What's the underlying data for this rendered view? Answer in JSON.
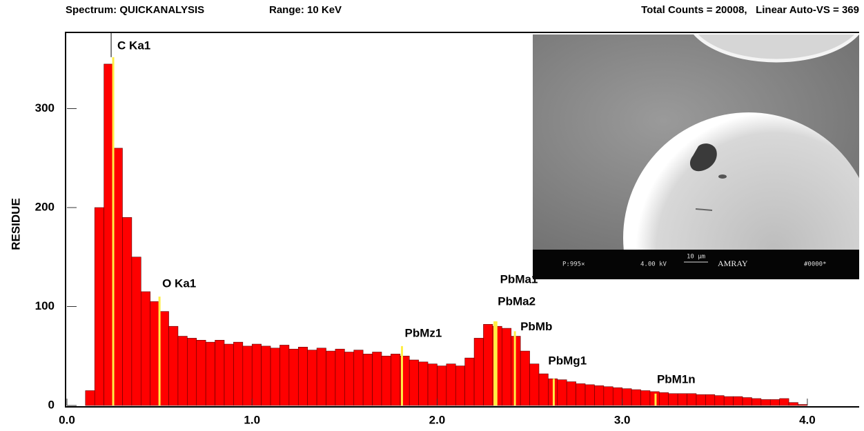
{
  "header": {
    "spectrum": "Spectrum: QUICKANALYSIS",
    "range": "Range: 10 KeV",
    "counts": "Total Counts = 20008,   Linear Auto-VS = 369"
  },
  "chart_data": {
    "type": "histogram",
    "ylabel": "RESIDUE",
    "color": "#ff0000",
    "bins": [
      0.1,
      0.15,
      0.2,
      0.25,
      0.3,
      0.35,
      0.4,
      0.45,
      0.5,
      0.55,
      0.6,
      0.65,
      0.7,
      0.75,
      0.8,
      0.85,
      0.9,
      0.95,
      1.0,
      1.05,
      1.1,
      1.15,
      1.2,
      1.25,
      1.3,
      1.35,
      1.4,
      1.45,
      1.5,
      1.55,
      1.6,
      1.65,
      1.7,
      1.75,
      1.8,
      1.85,
      1.9,
      1.95,
      2.0,
      2.05,
      2.1,
      2.15,
      2.2,
      2.25,
      2.3,
      2.35,
      2.4,
      2.45,
      2.5,
      2.55,
      2.6,
      2.65,
      2.7,
      2.75,
      2.8,
      2.85,
      2.9,
      2.95,
      3.0,
      3.05,
      3.1,
      3.15,
      3.2,
      3.25,
      3.3,
      3.35,
      3.4,
      3.45,
      3.5,
      3.55,
      3.6,
      3.65,
      3.7,
      3.75,
      3.8,
      3.85,
      3.9,
      3.95,
      4.0
    ],
    "values": [
      15,
      200,
      345,
      260,
      190,
      150,
      115,
      105,
      95,
      80,
      70,
      68,
      66,
      64,
      66,
      62,
      64,
      60,
      62,
      60,
      58,
      61,
      57,
      59,
      56,
      58,
      55,
      57,
      54,
      56,
      52,
      54,
      50,
      52,
      50,
      46,
      44,
      42,
      40,
      42,
      40,
      48,
      68,
      82,
      80,
      78,
      70,
      55,
      42,
      32,
      27,
      26,
      24,
      22,
      21,
      20,
      19,
      18,
      17,
      16,
      15,
      14,
      13,
      12,
      12,
      12,
      11,
      11,
      10,
      9,
      9,
      8,
      7,
      6,
      6,
      7,
      3,
      1
    ],
    "xlim": [
      0,
      4.28
    ],
    "ylim": [
      0,
      377
    ],
    "xticks": [
      {
        "value": 0,
        "label": "0.0"
      },
      {
        "value": 1,
        "label": "1.0"
      },
      {
        "value": 2,
        "label": "2.0"
      },
      {
        "value": 3,
        "label": "3.0"
      },
      {
        "value": 4,
        "label": "4.0"
      }
    ],
    "yticks": [
      0,
      100,
      200,
      300
    ],
    "marker_color": "#ffee44",
    "markers": [
      {
        "label": "C Ka1",
        "energy": 0.25,
        "height": 352
      },
      {
        "label": "O Ka1",
        "energy": 0.5,
        "height": 110
      },
      {
        "label": "PbMz1",
        "energy": 1.81,
        "height": 60
      },
      {
        "label": "PbMa1",
        "energy": 2.31,
        "height": 85
      },
      {
        "label": "PbMa2",
        "energy": 2.32,
        "height": 85
      },
      {
        "label": "PbMb",
        "energy": 2.42,
        "height": 75
      },
      {
        "label": "PbMg1",
        "energy": 2.63,
        "height": 27
      },
      {
        "label": "PbM1n",
        "energy": 3.18,
        "height": 12
      }
    ]
  },
  "inset": {
    "magnification": "P:995×",
    "voltage": "4.00 kV",
    "scale": "10 µm",
    "brand": "AMRAY",
    "id": "#0000*"
  }
}
